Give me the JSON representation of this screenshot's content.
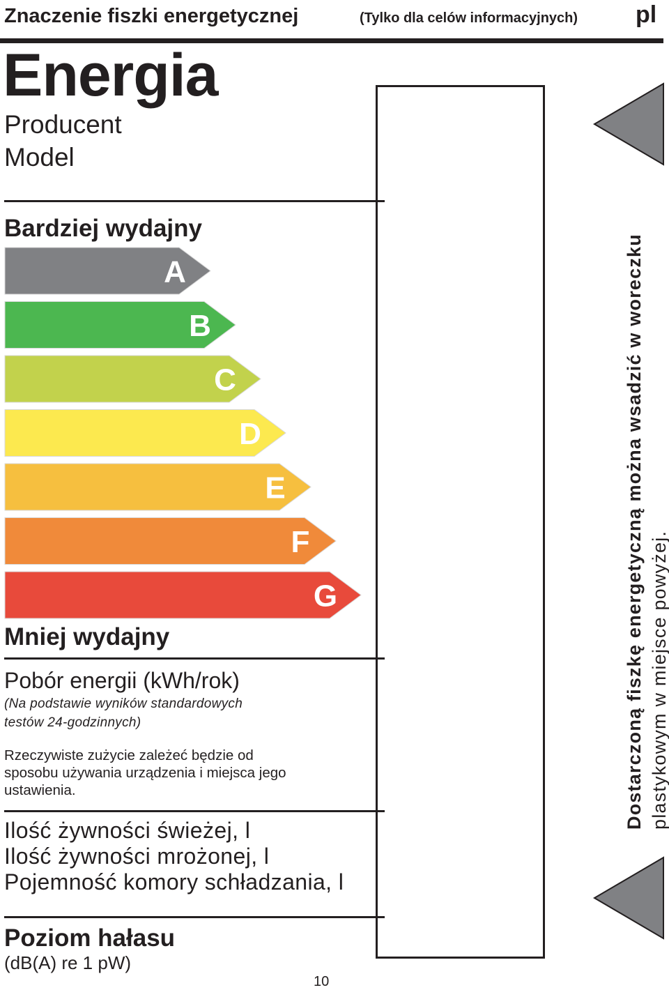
{
  "header": {
    "title": "Znaczenie fiszki energetycznej",
    "note": "(Tylko dla celów informacyjnych)",
    "lang": "pl"
  },
  "label": {
    "heading": "Energia",
    "producer": "Producent",
    "model": "Model",
    "more_efficient": "Bardziej wydajny",
    "less_efficient": "Mniej wydajny",
    "classes": [
      {
        "letter": "A",
        "color": "#808184"
      },
      {
        "letter": "B",
        "color": "#4cb750"
      },
      {
        "letter": "C",
        "color": "#c2d24c"
      },
      {
        "letter": "D",
        "color": "#fce94f"
      },
      {
        "letter": "E",
        "color": "#f6bf3f"
      },
      {
        "letter": "F",
        "color": "#f08a3a"
      },
      {
        "letter": "G",
        "color": "#e84a3b"
      }
    ],
    "consumption_title": "Pobór energii (kWh/rok)",
    "consumption_note_1": "(Na podstawie wyników standardowych",
    "consumption_note_2": "testów 24-godzinnych)",
    "usage_note_1": "Rzeczywiste zużycie zależeć będzie od",
    "usage_note_2": "sposobu używania urządzenia i miejsca jego",
    "usage_note_3": "ustawienia.",
    "fresh_food": "Ilość żywności świeżej, l",
    "frozen_food": "Ilość żywności mrożonej, l",
    "chill_capacity": "Pojemność komory schładzania, l",
    "noise_title": "Poziom hałasu",
    "noise_unit": "(dB(A) re 1 pW)"
  },
  "side": {
    "line1": "Dostarczoną fiszkę energetyczną można wsadzić w woreczku",
    "line2": "plastykowym w miejsce powyżej."
  },
  "page_number": "10"
}
